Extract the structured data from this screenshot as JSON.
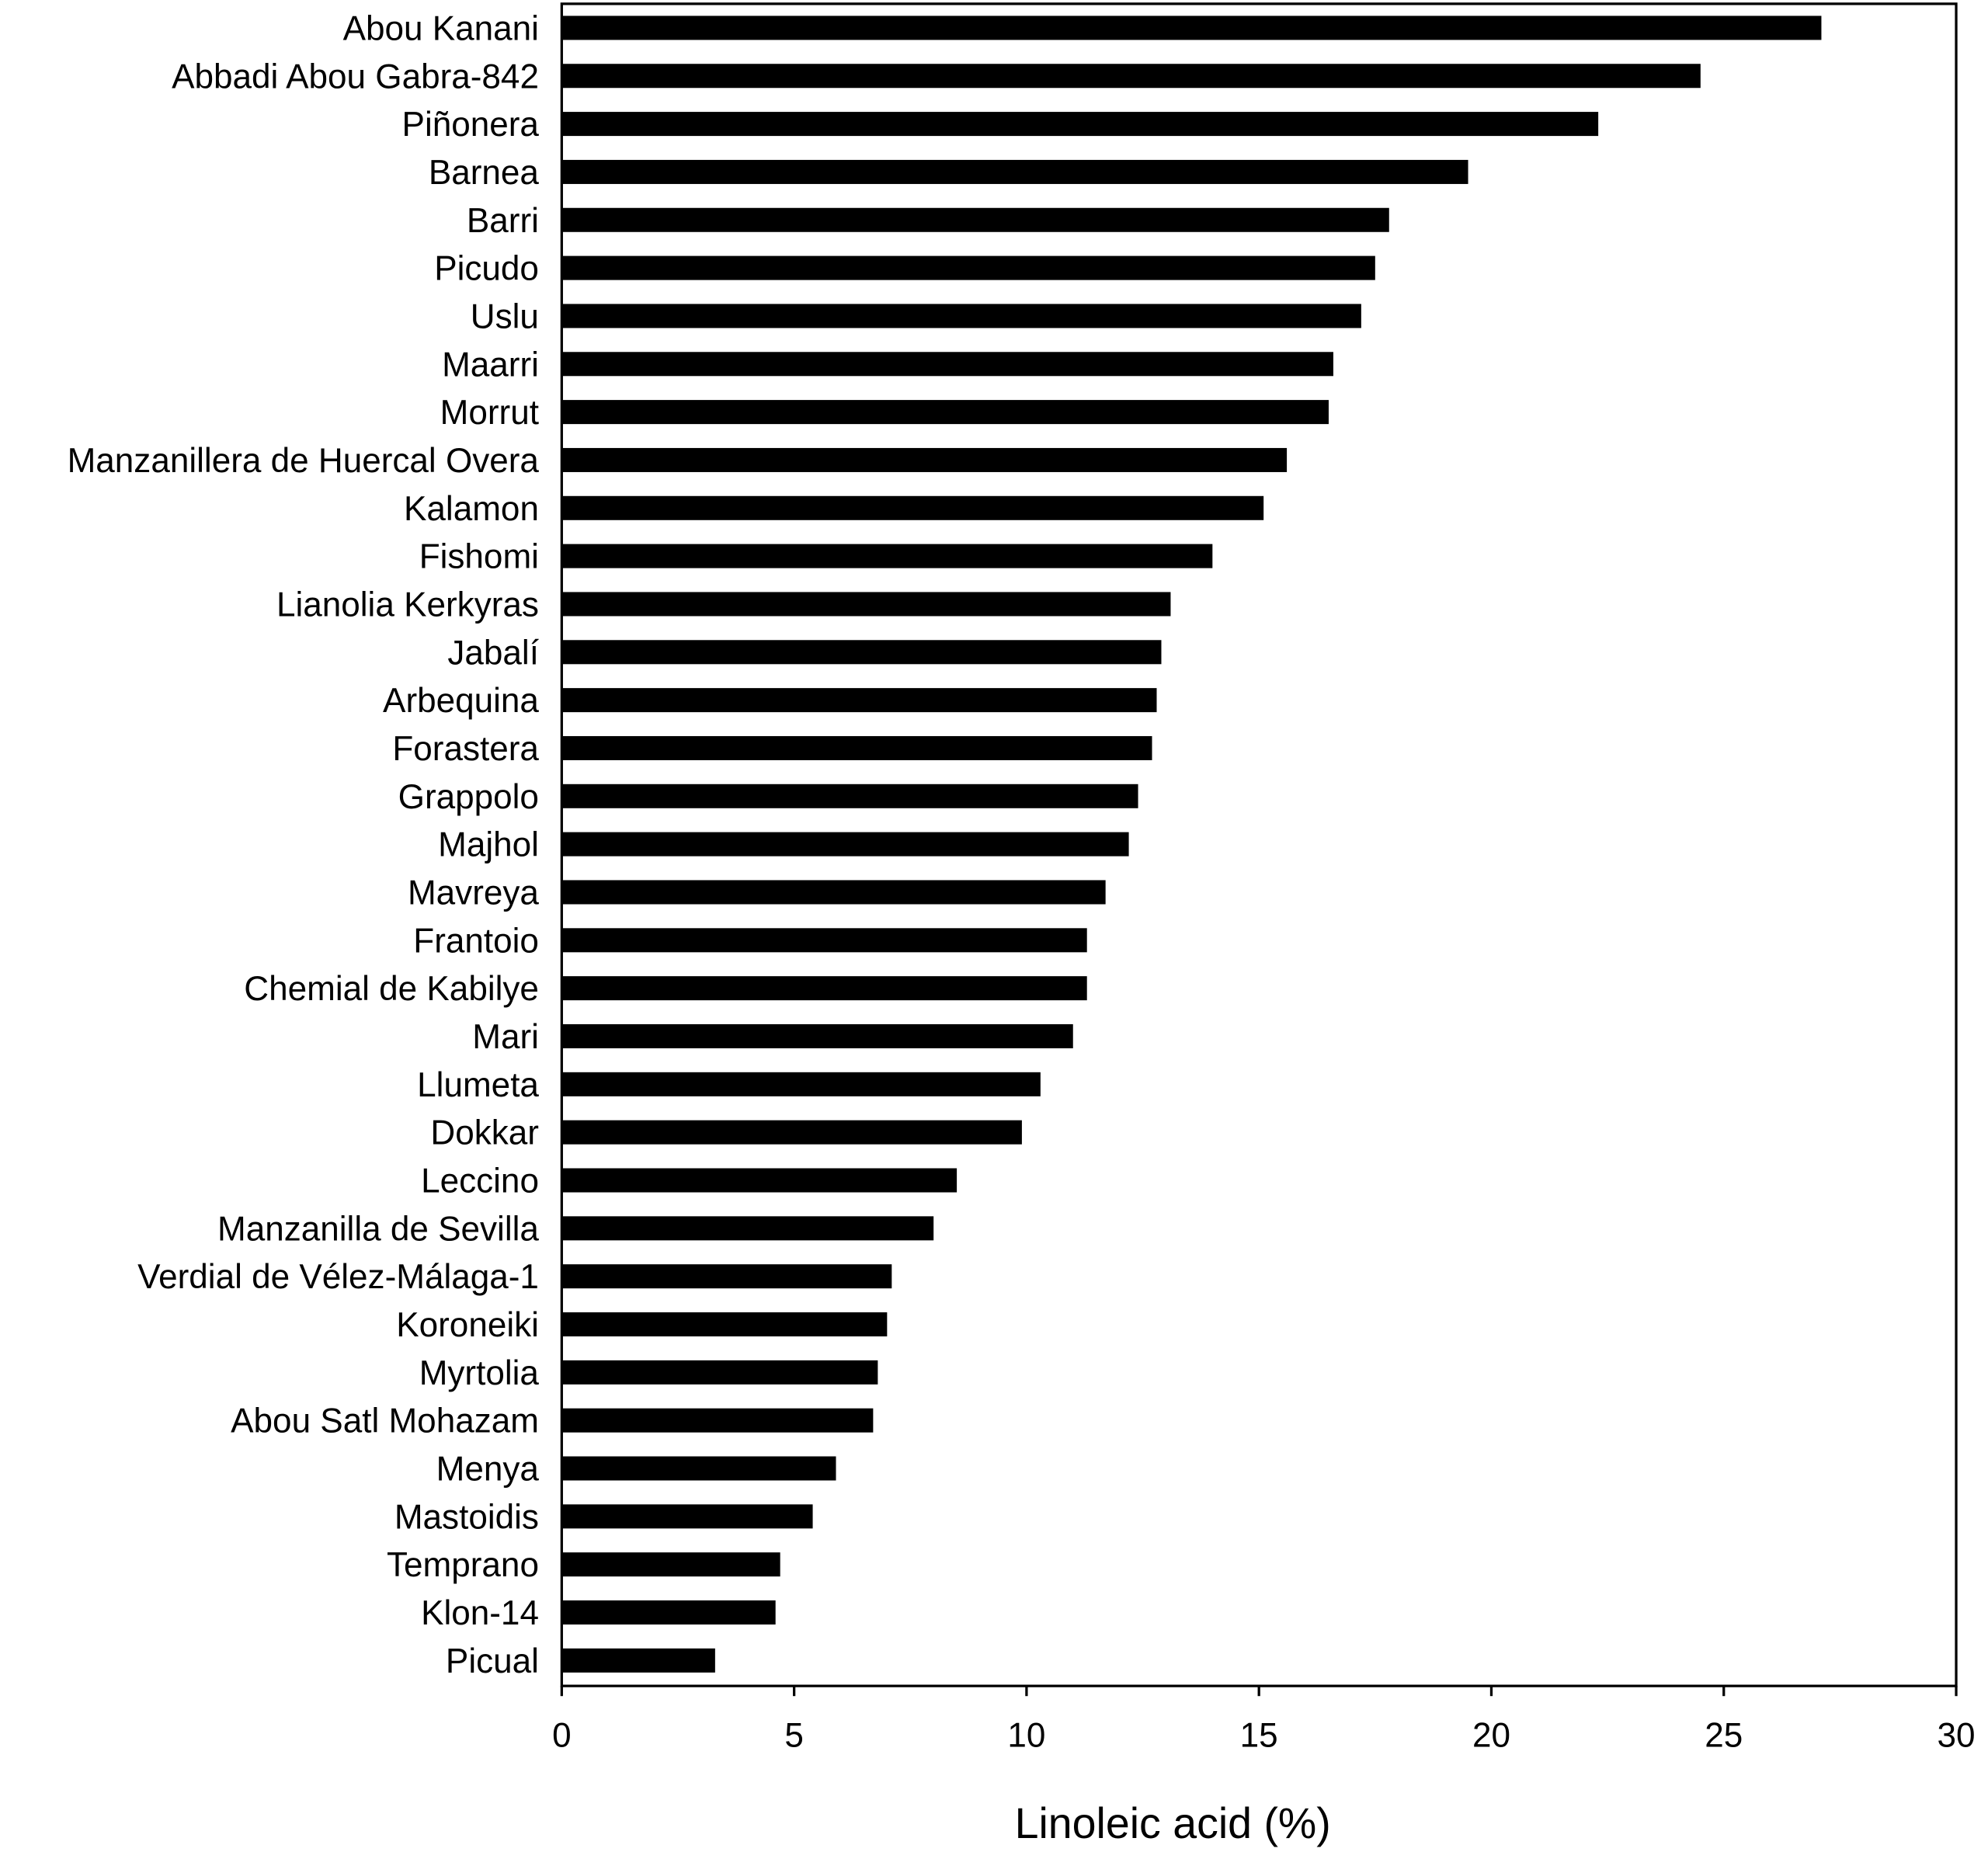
{
  "chart_data": {
    "type": "bar",
    "orientation": "horizontal",
    "title": "",
    "xlabel": "Linoleic acid (%)",
    "ylabel": "",
    "xlim": [
      0,
      30
    ],
    "xticks": [
      "0",
      "5",
      "10",
      "15",
      "20",
      "25",
      "30"
    ],
    "grid": false,
    "bar_color": "#000000",
    "categories": [
      "Abou Kanani",
      "Abbadi Abou Gabra-842",
      "Piñonera",
      "Barnea",
      "Barri",
      "Picudo",
      "Uslu",
      "Maarri",
      "Morrut",
      "Manzanillera de Huercal Overa",
      "Kalamon",
      "Fishomi",
      "Lianolia Kerkyras",
      "Jabalí",
      "Arbequina",
      "Forastera",
      "Grappolo",
      "Majhol",
      "Mavreya",
      "Frantoio",
      "Chemial de Kabilye",
      "Mari",
      "Llumeta",
      "Dokkar",
      "Leccino",
      "Manzanilla de Sevilla",
      "Verdial de Vélez-Málaga-1",
      "Koroneiki",
      "Myrtolia",
      "Abou Satl Mohazam",
      "Menya",
      "Mastoidis",
      "Temprano",
      "Klon-14",
      "Picual"
    ],
    "values": [
      27.1,
      24.5,
      22.3,
      19.5,
      17.8,
      17.5,
      17.2,
      16.6,
      16.5,
      15.6,
      15.1,
      14.0,
      13.1,
      12.9,
      12.8,
      12.7,
      12.4,
      12.2,
      11.7,
      11.3,
      11.3,
      11.0,
      10.3,
      9.9,
      8.5,
      8.0,
      7.1,
      7.0,
      6.8,
      6.7,
      5.9,
      5.4,
      4.7,
      4.6,
      3.3
    ]
  }
}
